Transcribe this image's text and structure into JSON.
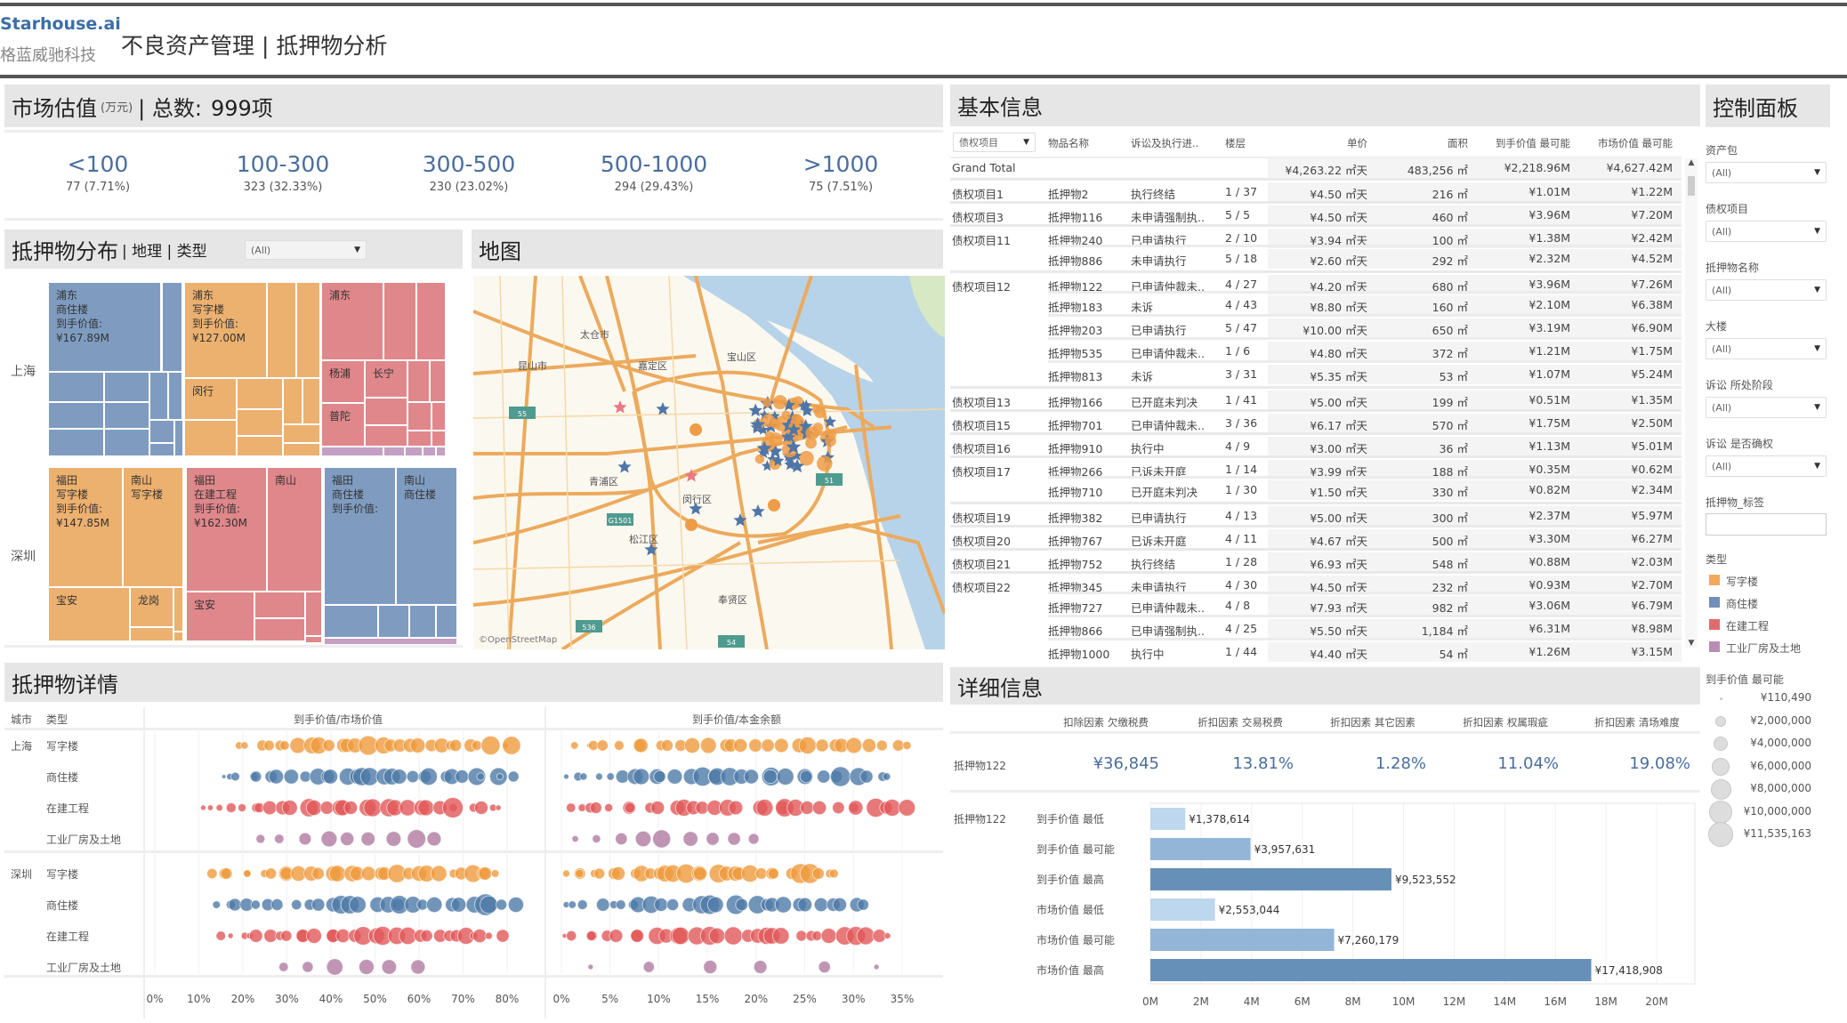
{
  "header": {
    "brand": "Starhouse.ai",
    "company": "格蓝威驰科技",
    "title": "不良资产管理 | 抵押物分析"
  },
  "valuation": {
    "title": "市场估值",
    "unit": "(万元)",
    "total_label": "| 总数:",
    "total": "999项",
    "buckets": [
      {
        "range": "<100",
        "detail": "77 (7.71%)"
      },
      {
        "range": "100-300",
        "detail": "323 (32.33%)"
      },
      {
        "range": "300-500",
        "detail": "230 (23.02%)"
      },
      {
        "range": "500-1000",
        "detail": "294 (29.43%)"
      },
      {
        "range": ">1000",
        "detail": "75 (7.51%)"
      }
    ]
  },
  "distribution": {
    "title": "抵押物分布",
    "subtitle": "| 地理 | 类型",
    "filter": "(All)",
    "cities": [
      "上海",
      "深圳"
    ],
    "labels": {
      "sh_blue": [
        "浦东",
        "商住楼",
        "到手价值:",
        "¥167.89M"
      ],
      "sh_orange": [
        "浦东",
        "写字楼",
        "到手价值:",
        "¥127.00M"
      ],
      "sh_orange_minhang": [
        "闵行"
      ],
      "sh_red": [
        "浦东"
      ],
      "sh_red_yangpu": [
        "杨浦"
      ],
      "sh_red_changning": [
        "长宁"
      ],
      "sh_red_putuo": [
        "普陀"
      ],
      "sz_orange": [
        "福田",
        "写字楼",
        "到手价值:",
        "¥147.85M"
      ],
      "sz_orange_nanshan": [
        "南山",
        "写字楼"
      ],
      "sz_orange_baoan": [
        "宝安"
      ],
      "sz_orange_longgang": [
        "龙岗"
      ],
      "sz_red": [
        "福田",
        "在建工程",
        "到手价值:",
        "¥162.30M"
      ],
      "sz_red_nanshan": [
        "南山"
      ],
      "sz_red_baoan": [
        "宝安"
      ],
      "sz_blue": [
        "福田",
        "商住楼",
        "到手价值:"
      ],
      "sz_blue_nanshan": [
        "南山",
        "商住楼"
      ]
    }
  },
  "map": {
    "title": "地图",
    "places": [
      "太仓市",
      "昆山市",
      "嘉定区",
      "宝山区",
      "青浦区",
      "闵行区",
      "松江区",
      "奉贤区"
    ],
    "shields": [
      "55",
      "G1501",
      "536",
      "51",
      "54"
    ],
    "attribution": "©OpenStreetMap"
  },
  "basic": {
    "title": "基本信息",
    "filter": "债权项目",
    "columns": [
      "物品名称",
      "诉讼及执行进..",
      "楼层",
      "单价",
      "面积",
      "到手价值 最可能",
      "市场价值 最可能"
    ],
    "grand_total": {
      "label": "Grand Total",
      "price": "¥4,263.22 ㎡天",
      "area": "483,256 ㎡",
      "net": "¥2,218.96M",
      "market": "¥4,627.42M"
    },
    "rows": [
      [
        "债权项目1",
        "抵押物2",
        "执行终结",
        "1 / 37",
        "¥4.50 ㎡天",
        "216 ㎡",
        "¥1.01M",
        "¥1.22M"
      ],
      [
        "债权项目3",
        "抵押物116",
        "未申请强制执..",
        "5 / 5",
        "¥4.50 ㎡天",
        "460 ㎡",
        "¥3.96M",
        "¥7.20M"
      ],
      [
        "债权项目11",
        "抵押物240",
        "已申请执行",
        "2 / 10",
        "¥3.94 ㎡天",
        "100 ㎡",
        "¥1.38M",
        "¥2.42M"
      ],
      [
        "",
        "抵押物886",
        "未申请执行",
        "5 / 18",
        "¥2.60 ㎡天",
        "292 ㎡",
        "¥2.32M",
        "¥4.52M"
      ],
      [
        "债权项目12",
        "抵押物122",
        "已申请仲裁未..",
        "4 / 27",
        "¥4.20 ㎡天",
        "680 ㎡",
        "¥3.96M",
        "¥7.26M"
      ],
      [
        "",
        "抵押物183",
        "未诉",
        "4 / 43",
        "¥8.80 ㎡天",
        "160 ㎡",
        "¥2.10M",
        "¥6.38M"
      ],
      [
        "",
        "抵押物203",
        "已申请执行",
        "5 / 47",
        "¥10.00 ㎡天",
        "650 ㎡",
        "¥3.19M",
        "¥6.90M"
      ],
      [
        "",
        "抵押物535",
        "已申请仲裁未..",
        "1 / 6",
        "¥4.80 ㎡天",
        "372 ㎡",
        "¥1.21M",
        "¥1.75M"
      ],
      [
        "",
        "抵押物813",
        "未诉",
        "3 / 31",
        "¥5.35 ㎡天",
        "53 ㎡",
        "¥1.07M",
        "¥5.24M"
      ],
      [
        "债权项目13",
        "抵押物166",
        "已开庭未判决",
        "1 / 41",
        "¥5.00 ㎡天",
        "199 ㎡",
        "¥0.51M",
        "¥1.35M"
      ],
      [
        "债权项目15",
        "抵押物701",
        "已申请仲裁未..",
        "3 / 36",
        "¥6.17 ㎡天",
        "570 ㎡",
        "¥1.75M",
        "¥2.50M"
      ],
      [
        "债权项目16",
        "抵押物910",
        "执行中",
        "4 / 9",
        "¥3.00 ㎡天",
        "36 ㎡",
        "¥1.13M",
        "¥5.01M"
      ],
      [
        "债权项目17",
        "抵押物266",
        "已诉未开庭",
        "1 / 14",
        "¥3.99 ㎡天",
        "188 ㎡",
        "¥0.35M",
        "¥0.62M"
      ],
      [
        "",
        "抵押物710",
        "已开庭未判决",
        "1 / 30",
        "¥1.50 ㎡天",
        "330 ㎡",
        "¥0.82M",
        "¥2.34M"
      ],
      [
        "债权项目19",
        "抵押物382",
        "已申请执行",
        "4 / 13",
        "¥5.00 ㎡天",
        "300 ㎡",
        "¥2.37M",
        "¥5.97M"
      ],
      [
        "债权项目20",
        "抵押物767",
        "已诉未开庭",
        "4 / 11",
        "¥4.67 ㎡天",
        "500 ㎡",
        "¥3.30M",
        "¥6.27M"
      ],
      [
        "债权项目21",
        "抵押物752",
        "执行终结",
        "1 / 28",
        "¥6.93 ㎡天",
        "548 ㎡",
        "¥0.88M",
        "¥2.03M"
      ],
      [
        "债权项目22",
        "抵押物345",
        "未申请执行",
        "4 / 30",
        "¥4.50 ㎡天",
        "232 ㎡",
        "¥0.93M",
        "¥2.70M"
      ],
      [
        "",
        "抵押物727",
        "已申请仲裁未..",
        "4 / 8",
        "¥7.93 ㎡天",
        "982 ㎡",
        "¥3.06M",
        "¥6.79M"
      ],
      [
        "",
        "抵押物866",
        "已申请强制执..",
        "4 / 25",
        "¥5.50 ㎡天",
        "1,184 ㎡",
        "¥6.31M",
        "¥8.98M"
      ],
      [
        "",
        "抵押物1000",
        "执行中",
        "1 / 44",
        "¥4.40 ㎡天",
        "54 ㎡",
        "¥1.26M",
        "¥3.15M"
      ]
    ]
  },
  "control": {
    "title": "控制面板",
    "filters": [
      {
        "label": "资产包",
        "value": "(All)"
      },
      {
        "label": "债权项目",
        "value": "(All)"
      },
      {
        "label": "抵押物名称",
        "value": "(All)"
      },
      {
        "label": "大楼",
        "value": "(All)"
      },
      {
        "label": "诉讼 所处阶段",
        "value": "(All)"
      },
      {
        "label": "诉讼 是否确权",
        "value": "(All)"
      }
    ],
    "tag_label": "抵押物_标签",
    "tag_value": "",
    "type_label": "类型",
    "types": [
      {
        "name": "写字楼",
        "color": "#f0a85a"
      },
      {
        "name": "商住楼",
        "color": "#6f8fb8"
      },
      {
        "name": "在建工程",
        "color": "#e06b6e"
      },
      {
        "name": "工业厂房及土地",
        "color": "#b88db3"
      }
    ],
    "size_label": "到手价值 最可能",
    "sizes": [
      "¥110,490",
      "¥2,000,000",
      "¥4,000,000",
      "¥6,000,000",
      "¥8,000,000",
      "¥10,000,000",
      "¥11,535,163"
    ]
  },
  "collateral": {
    "title": "抵押物详情",
    "col_city": "城市",
    "col_type": "类型",
    "chart1_title": "到手价值/市场价值",
    "chart2_title": "到手价值/本金余额",
    "cities": [
      "上海",
      "深圳"
    ],
    "types": [
      "写字楼",
      "商住楼",
      "在建工程",
      "工业厂房及土地"
    ],
    "axis1": [
      "0%",
      "10%",
      "20%",
      "30%",
      "40%",
      "50%",
      "60%",
      "70%",
      "80%"
    ],
    "axis2": [
      "0%",
      "5%",
      "10%",
      "15%",
      "20%",
      "25%",
      "30%",
      "35%"
    ]
  },
  "detail": {
    "title": "详细信息",
    "item": "抵押物122",
    "factors": [
      {
        "label": "扣除因素 欠缴税费",
        "value": "¥36,845"
      },
      {
        "label": "折扣因素 交易税费",
        "value": "13.81%"
      },
      {
        "label": "折扣因素 其它因素",
        "value": "1.28%"
      },
      {
        "label": "折扣因素 权属瑕疵",
        "value": "11.04%"
      },
      {
        "label": "折扣因素 清场难度",
        "value": "19.08%"
      }
    ]
  },
  "chart_data": [
    {
      "type": "bar",
      "title": "详细信息 抵押物122",
      "orientation": "horizontal",
      "categories": [
        "到手价值 最低",
        "到手价值 最可能",
        "到手价值 最高",
        "市场价值 最低",
        "市场价值 最可能",
        "市场价值 最高"
      ],
      "values": [
        1378614,
        3957631,
        9523552,
        2553044,
        7260179,
        17418908
      ],
      "labels": [
        "¥1,378,614",
        "¥3,957,631",
        "¥9,523,552",
        "¥2,553,044",
        "¥7,260,179",
        "¥17,418,908"
      ],
      "colors": [
        "#bcd7ee",
        "#93b5d8",
        "#6790b9",
        "#bcd7ee",
        "#93b5d8",
        "#6790b9"
      ],
      "xlim": [
        0,
        20000000
      ],
      "xticks": [
        "0M",
        "2M",
        "4M",
        "6M",
        "8M",
        "10M",
        "12M",
        "14M",
        "16M",
        "18M",
        "20M"
      ]
    },
    {
      "type": "scatter",
      "title": "抵押物详情 (bubble strip)",
      "size_by": "到手价值 最可能",
      "rows": [
        {
          "city": "上海",
          "type": "写字楼",
          "ratio_market": [
            19,
            81
          ],
          "ratio_principal": [
            1,
            35.5
          ],
          "count": 28
        },
        {
          "city": "上海",
          "type": "商住楼",
          "ratio_market": [
            15,
            82
          ],
          "ratio_principal": [
            0.5,
            33.5
          ],
          "count": 30
        },
        {
          "city": "上海",
          "type": "在建工程",
          "ratio_market": [
            11,
            78
          ],
          "ratio_principal": [
            0.5,
            35.5
          ],
          "count": 30
        },
        {
          "city": "上海",
          "type": "工业厂房及土地",
          "ratio_market": [
            24,
            64
          ],
          "ratio_principal": [
            1.2,
            20
          ],
          "count": 9
        },
        {
          "city": "深圳",
          "type": "写字楼",
          "ratio_market": [
            13,
            78
          ],
          "ratio_principal": [
            0.5,
            28
          ],
          "count": 30
        },
        {
          "city": "深圳",
          "type": "商住楼",
          "ratio_market": [
            14,
            82
          ],
          "ratio_principal": [
            0.5,
            31
          ],
          "count": 28
        },
        {
          "city": "深圳",
          "type": "在建工程",
          "ratio_market": [
            15,
            79
          ],
          "ratio_principal": [
            0.3,
            33.5
          ],
          "count": 30
        },
        {
          "city": "深圳",
          "type": "工业厂房及土地",
          "ratio_market": [
            29,
            60
          ],
          "ratio_principal": [
            3,
            32.5
          ],
          "count": 6
        }
      ]
    }
  ]
}
